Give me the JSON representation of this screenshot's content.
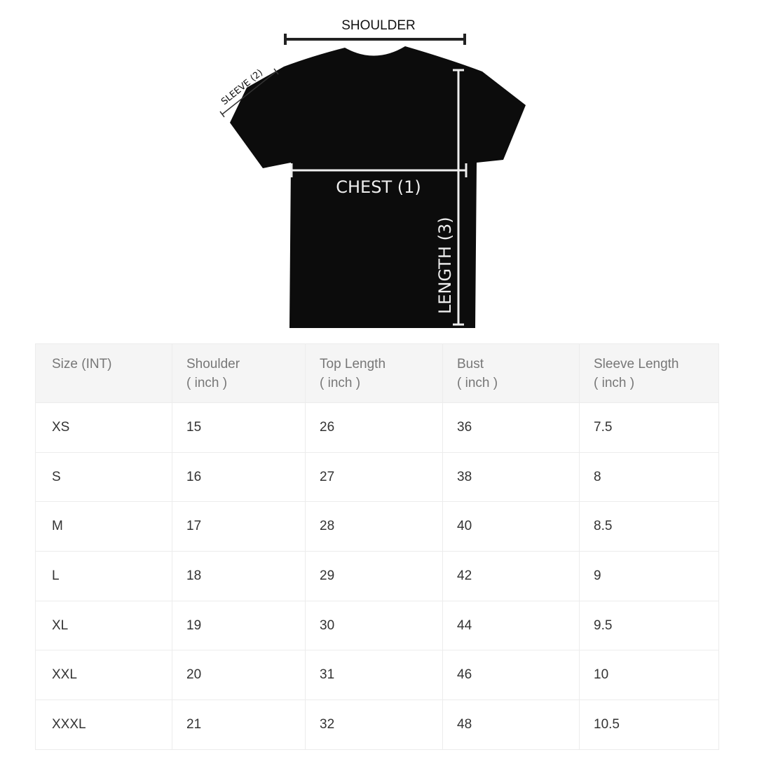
{
  "diagram": {
    "shoulder_label": "SHOULDER",
    "sleeve_label": "SLEEVE (2)",
    "chest_label": "CHEST (1)",
    "length_label": "LENGTH (3)"
  },
  "table": {
    "headers": [
      {
        "title": "Size (INT)",
        "unit": ""
      },
      {
        "title": "Shoulder",
        "unit": "( inch )"
      },
      {
        "title": "Top Length",
        "unit": "( inch )"
      },
      {
        "title": "Bust",
        "unit": "( inch )"
      },
      {
        "title": "Sleeve Length",
        "unit": "( inch )"
      }
    ],
    "rows": [
      [
        "XS",
        "15",
        "26",
        "36",
        "7.5"
      ],
      [
        "S",
        "16",
        "27",
        "38",
        "8"
      ],
      [
        "M",
        "17",
        "28",
        "40",
        "8.5"
      ],
      [
        "L",
        "18",
        "29",
        "42",
        "9"
      ],
      [
        "XL",
        "19",
        "30",
        "44",
        "9.5"
      ],
      [
        "XXL",
        "20",
        "31",
        "46",
        "10"
      ],
      [
        "XXXL",
        "21",
        "32",
        "48",
        "10.5"
      ]
    ]
  }
}
